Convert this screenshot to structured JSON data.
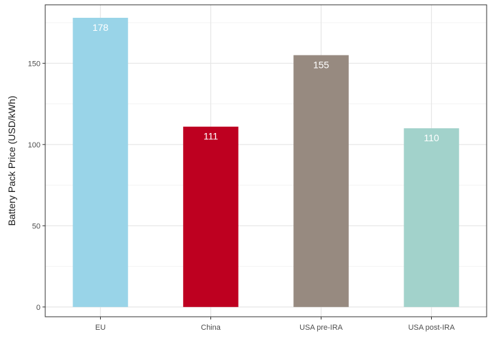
{
  "chart_data": {
    "type": "bar",
    "categories": [
      "EU",
      "China",
      "USA pre-IRA",
      "USA post-IRA"
    ],
    "values": [
      178,
      111,
      155,
      110
    ],
    "data_labels": [
      "178",
      "111",
      "155",
      "110"
    ],
    "colors": [
      "#99d4e8",
      "#be0020",
      "#978a80",
      "#a2d2cb"
    ],
    "title": "",
    "xlabel": "",
    "ylabel": "Battery Pack Price (USD/kWh)",
    "ylim": [
      -6,
      186
    ],
    "yticks": [
      0,
      50,
      100,
      150
    ],
    "ytick_labels": [
      "0",
      "50",
      "100",
      "150"
    ],
    "grid": true,
    "legend": "none"
  }
}
